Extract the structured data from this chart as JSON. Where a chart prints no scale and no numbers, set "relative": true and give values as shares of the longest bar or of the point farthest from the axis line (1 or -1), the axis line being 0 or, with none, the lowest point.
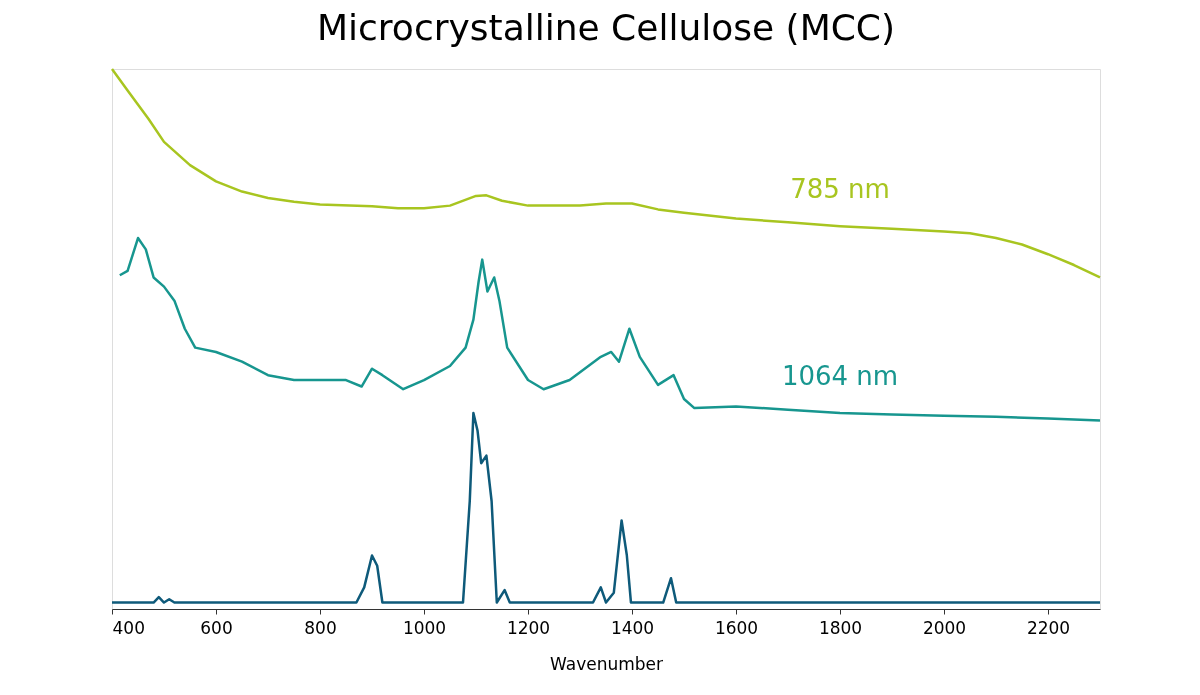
{
  "chart_data": {
    "type": "line",
    "title": "Microcrystalline Cellulose (MCC)",
    "xlabel": "Wavenumber",
    "relative": true,
    "xlim": [
      400,
      2300
    ],
    "xticks": [
      400,
      600,
      800,
      1000,
      1200,
      1400,
      1600,
      1800,
      2000,
      2200
    ],
    "grid": false,
    "line_style": "solid",
    "marker": "none",
    "series": [
      {
        "name": "785 nm",
        "color": "#a8c520",
        "x": [
          400,
          430,
          470,
          500,
          550,
          600,
          650,
          700,
          750,
          800,
          900,
          950,
          1000,
          1050,
          1100,
          1120,
          1150,
          1200,
          1300,
          1350,
          1400,
          1450,
          1500,
          1600,
          1700,
          1800,
          1900,
          2000,
          2050,
          2100,
          2150,
          2200,
          2250,
          2300
        ],
        "values": [
          1.0,
          0.96,
          0.908,
          0.865,
          0.822,
          0.792,
          0.773,
          0.761,
          0.754,
          0.749,
          0.746,
          0.742,
          0.742,
          0.747,
          0.765,
          0.766,
          0.756,
          0.747,
          0.747,
          0.751,
          0.751,
          0.74,
          0.734,
          0.723,
          0.716,
          0.709,
          0.704,
          0.699,
          0.696,
          0.687,
          0.675,
          0.657,
          0.637,
          0.614
        ]
      },
      {
        "name": "1064 nm",
        "color": "#17968f",
        "x": [
          415,
          430,
          450,
          465,
          480,
          500,
          520,
          540,
          560,
          600,
          650,
          700,
          750,
          800,
          850,
          880,
          900,
          920,
          960,
          1000,
          1050,
          1080,
          1095,
          1105,
          1112,
          1122,
          1135,
          1145,
          1160,
          1200,
          1230,
          1280,
          1340,
          1360,
          1375,
          1395,
          1415,
          1450,
          1480,
          1500,
          1520,
          1600,
          1700,
          1800,
          1900,
          2000,
          2100,
          2200,
          2300
        ],
        "values": [
          0.618,
          0.626,
          0.687,
          0.666,
          0.614,
          0.597,
          0.571,
          0.519,
          0.484,
          0.476,
          0.458,
          0.433,
          0.424,
          0.424,
          0.424,
          0.412,
          0.445,
          0.433,
          0.407,
          0.424,
          0.45,
          0.484,
          0.536,
          0.606,
          0.647,
          0.588,
          0.614,
          0.571,
          0.484,
          0.424,
          0.407,
          0.424,
          0.467,
          0.476,
          0.458,
          0.519,
          0.467,
          0.415,
          0.433,
          0.389,
          0.372,
          0.375,
          0.369,
          0.363,
          0.36,
          0.358,
          0.356,
          0.353,
          0.349
        ]
      },
      {
        "color": "#0e5a7a",
        "x": [
          400,
          480,
          490,
          500,
          510,
          520,
          870,
          885,
          900,
          910,
          920,
          1075,
          1088,
          1095,
          1103,
          1110,
          1120,
          1130,
          1140,
          1155,
          1165,
          1325,
          1340,
          1350,
          1365,
          1380,
          1390,
          1398,
          1460,
          1475,
          1485,
          2300
        ],
        "values": [
          0.012,
          0.012,
          0.022,
          0.012,
          0.018,
          0.012,
          0.012,
          0.04,
          0.099,
          0.08,
          0.012,
          0.012,
          0.2,
          0.363,
          0.33,
          0.27,
          0.284,
          0.2,
          0.012,
          0.035,
          0.012,
          0.012,
          0.04,
          0.012,
          0.03,
          0.164,
          0.1,
          0.012,
          0.012,
          0.057,
          0.012,
          0.012
        ]
      }
    ]
  }
}
